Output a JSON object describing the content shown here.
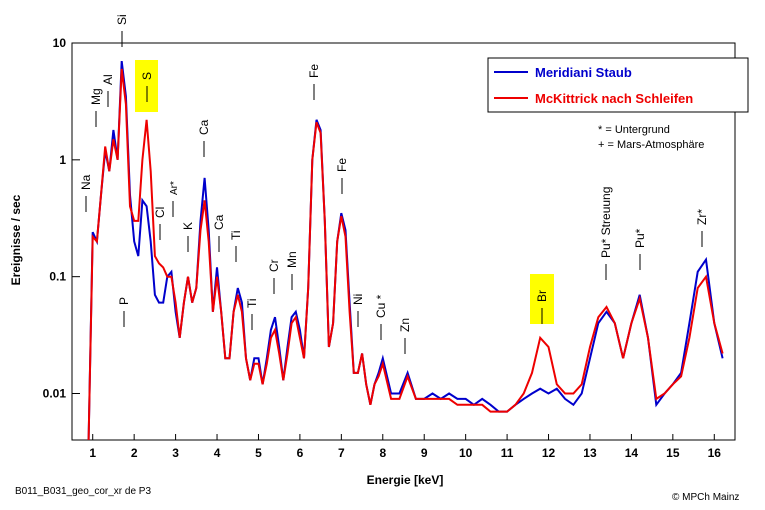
{
  "chart_data": {
    "type": "line",
    "xlabel": "Energie [keV]",
    "ylabel": "Ereignisse / sec",
    "x": [
      0.9,
      1.0,
      1.1,
      1.2,
      1.3,
      1.4,
      1.5,
      1.6,
      1.7,
      1.8,
      1.9,
      2.0,
      2.1,
      2.2,
      2.3,
      2.4,
      2.5,
      2.6,
      2.7,
      2.8,
      2.9,
      3.0,
      3.1,
      3.2,
      3.3,
      3.4,
      3.5,
      3.6,
      3.7,
      3.8,
      3.9,
      4.0,
      4.1,
      4.2,
      4.3,
      4.4,
      4.5,
      4.6,
      4.7,
      4.8,
      4.9,
      5.0,
      5.1,
      5.2,
      5.3,
      5.4,
      5.5,
      5.6,
      5.7,
      5.8,
      5.9,
      6.0,
      6.1,
      6.2,
      6.3,
      6.4,
      6.5,
      6.6,
      6.7,
      6.8,
      6.9,
      7.0,
      7.1,
      7.2,
      7.3,
      7.4,
      7.5,
      7.6,
      7.7,
      7.8,
      7.9,
      8.0,
      8.2,
      8.4,
      8.6,
      8.8,
      9.0,
      9.2,
      9.4,
      9.6,
      9.8,
      10.0,
      10.2,
      10.4,
      10.6,
      10.8,
      11.0,
      11.2,
      11.4,
      11.6,
      11.8,
      12.0,
      12.2,
      12.4,
      12.6,
      12.8,
      13.0,
      13.2,
      13.4,
      13.6,
      13.8,
      14.0,
      14.2,
      14.4,
      14.6,
      14.8,
      15.0,
      15.2,
      15.4,
      15.6,
      15.8,
      16.0,
      16.2
    ],
    "series": [
      {
        "name": "Meridiani Staub",
        "color": "#0000cc",
        "values": [
          0.004,
          0.24,
          0.2,
          0.5,
          1.2,
          0.8,
          1.8,
          1.0,
          7,
          3.5,
          0.5,
          0.2,
          0.15,
          0.45,
          0.4,
          0.2,
          0.07,
          0.06,
          0.06,
          0.1,
          0.11,
          0.05,
          0.03,
          0.06,
          0.1,
          0.06,
          0.08,
          0.3,
          0.7,
          0.25,
          0.05,
          0.12,
          0.05,
          0.02,
          0.02,
          0.05,
          0.08,
          0.06,
          0.02,
          0.013,
          0.02,
          0.02,
          0.012,
          0.02,
          0.035,
          0.045,
          0.025,
          0.013,
          0.025,
          0.045,
          0.05,
          0.035,
          0.02,
          0.08,
          1.0,
          2.2,
          1.8,
          0.3,
          0.025,
          0.04,
          0.2,
          0.35,
          0.25,
          0.06,
          0.015,
          0.015,
          0.022,
          0.012,
          0.008,
          0.012,
          0.015,
          0.02,
          0.01,
          0.01,
          0.015,
          0.009,
          0.009,
          0.01,
          0.009,
          0.01,
          0.009,
          0.009,
          0.008,
          0.009,
          0.008,
          0.007,
          0.007,
          0.008,
          0.009,
          0.01,
          0.011,
          0.01,
          0.011,
          0.009,
          0.008,
          0.01,
          0.02,
          0.04,
          0.05,
          0.04,
          0.02,
          0.04,
          0.07,
          0.03,
          0.008,
          0.01,
          0.012,
          0.015,
          0.04,
          0.11,
          0.14,
          0.04,
          0.02
        ]
      },
      {
        "name": "McKittrick nach Schleifen",
        "color": "#ee0000",
        "values": [
          0.004,
          0.22,
          0.2,
          0.5,
          1.3,
          0.8,
          1.5,
          1.0,
          6,
          3.0,
          0.4,
          0.3,
          0.3,
          1.0,
          2.2,
          0.8,
          0.15,
          0.13,
          0.12,
          0.1,
          0.1,
          0.06,
          0.03,
          0.06,
          0.1,
          0.06,
          0.08,
          0.25,
          0.45,
          0.2,
          0.05,
          0.1,
          0.05,
          0.02,
          0.02,
          0.05,
          0.07,
          0.05,
          0.02,
          0.013,
          0.018,
          0.018,
          0.012,
          0.018,
          0.03,
          0.035,
          0.022,
          0.013,
          0.022,
          0.04,
          0.045,
          0.03,
          0.02,
          0.08,
          1.0,
          2.1,
          1.7,
          0.3,
          0.025,
          0.04,
          0.2,
          0.33,
          0.22,
          0.05,
          0.015,
          0.015,
          0.022,
          0.012,
          0.008,
          0.012,
          0.014,
          0.018,
          0.009,
          0.009,
          0.014,
          0.009,
          0.009,
          0.009,
          0.009,
          0.009,
          0.008,
          0.008,
          0.008,
          0.008,
          0.007,
          0.007,
          0.007,
          0.008,
          0.01,
          0.015,
          0.03,
          0.025,
          0.012,
          0.01,
          0.01,
          0.012,
          0.025,
          0.045,
          0.055,
          0.04,
          0.02,
          0.04,
          0.065,
          0.03,
          0.009,
          0.01,
          0.012,
          0.014,
          0.03,
          0.08,
          0.1,
          0.04,
          0.022
        ]
      }
    ],
    "xlim": [
      0.5,
      16.5
    ],
    "xticks": [
      1,
      2,
      3,
      4,
      5,
      6,
      7,
      8,
      9,
      10,
      11,
      12,
      13,
      14,
      15,
      16
    ],
    "ylim": [
      0.004,
      10
    ],
    "yticks": [
      0.01,
      0.1,
      1,
      10
    ],
    "log_y": true,
    "legend": "upper right",
    "annotations": [
      "Na",
      "Mg",
      "Al",
      "Si",
      "S",
      "P",
      "Cl",
      "Ar*",
      "K",
      "Ca",
      "Ca",
      "Ti",
      "Ti",
      "Cr",
      "Mn",
      "Fe",
      "Fe",
      "Ni",
      "Cu *",
      "Zn",
      "Br",
      "Pu* Streuung",
      "Pu*",
      "Zr*"
    ],
    "notes": [
      "* = Untergrund",
      "+ = Mars-Atmosphäre"
    ],
    "footer_left": "B011_B031_geo_cor_xr de P3",
    "footer_right": "© MPCh Mainz"
  }
}
